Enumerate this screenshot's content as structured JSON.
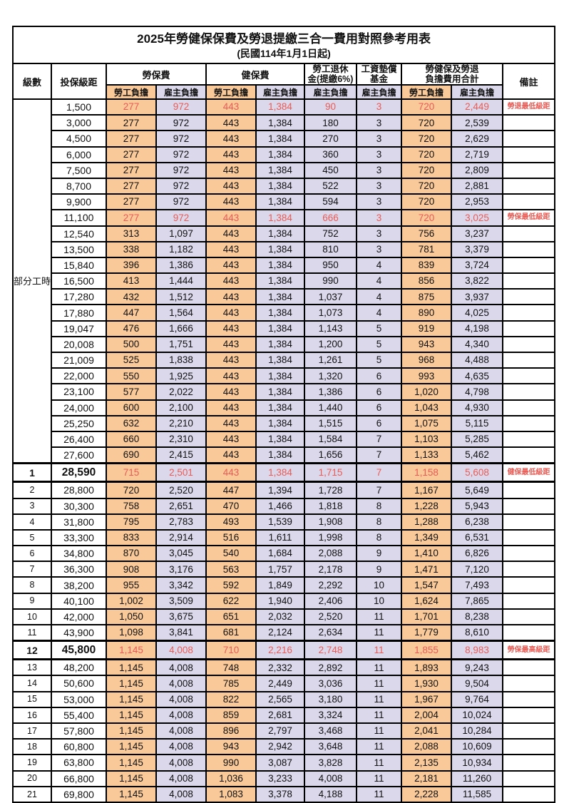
{
  "title": "2025年勞健保保費及勞退提繳三合一費用對照參考用表",
  "subtitle": "(民國114年1月1日起)",
  "colors": {
    "employee_bg": "#f9c999",
    "employer_bg": "#dbd8ec",
    "red": "#e85c55",
    "border": "#000000"
  },
  "header": {
    "level": "級數",
    "bracket": "投保級距",
    "labor_fee": "勞保費",
    "health_fee": "健保費",
    "pension_line1": "勞工退休",
    "pension_line2": "金(提繳6%)",
    "wage_fund_line1": "工資墊償",
    "wage_fund_line2": "基金",
    "total_line1": "勞健保及勞退",
    "total_line2": "負擔費用合計",
    "note": "備註",
    "employee_share": "勞工負擔",
    "employer_share": "雇主負擔"
  },
  "part_time_label": "部分工時",
  "rows": [
    {
      "level": "",
      "bracket": "1,500",
      "cells": [
        "277",
        "972",
        "443",
        "1,384",
        "90",
        "3",
        "720",
        "2,449"
      ],
      "note": "勞退最低級距",
      "red": true,
      "big": false
    },
    {
      "level": "",
      "bracket": "3,000",
      "cells": [
        "277",
        "972",
        "443",
        "1,384",
        "180",
        "3",
        "720",
        "2,539"
      ],
      "note": "",
      "red": false,
      "big": false
    },
    {
      "level": "",
      "bracket": "4,500",
      "cells": [
        "277",
        "972",
        "443",
        "1,384",
        "270",
        "3",
        "720",
        "2,629"
      ],
      "note": "",
      "red": false,
      "big": false
    },
    {
      "level": "",
      "bracket": "6,000",
      "cells": [
        "277",
        "972",
        "443",
        "1,384",
        "360",
        "3",
        "720",
        "2,719"
      ],
      "note": "",
      "red": false,
      "big": false
    },
    {
      "level": "",
      "bracket": "7,500",
      "cells": [
        "277",
        "972",
        "443",
        "1,384",
        "450",
        "3",
        "720",
        "2,809"
      ],
      "note": "",
      "red": false,
      "big": false
    },
    {
      "level": "",
      "bracket": "8,700",
      "cells": [
        "277",
        "972",
        "443",
        "1,384",
        "522",
        "3",
        "720",
        "2,881"
      ],
      "note": "",
      "red": false,
      "big": false
    },
    {
      "level": "",
      "bracket": "9,900",
      "cells": [
        "277",
        "972",
        "443",
        "1,384",
        "594",
        "3",
        "720",
        "2,953"
      ],
      "note": "",
      "red": false,
      "big": false
    },
    {
      "level": "",
      "bracket": "11,100",
      "cells": [
        "277",
        "972",
        "443",
        "1,384",
        "666",
        "3",
        "720",
        "3,025"
      ],
      "note": "勞保最低級距",
      "red": true,
      "big": false
    },
    {
      "level": "",
      "bracket": "12,540",
      "cells": [
        "313",
        "1,097",
        "443",
        "1,384",
        "752",
        "3",
        "756",
        "3,237"
      ],
      "note": "",
      "red": false,
      "big": false
    },
    {
      "level": "",
      "bracket": "13,500",
      "cells": [
        "338",
        "1,182",
        "443",
        "1,384",
        "810",
        "3",
        "781",
        "3,379"
      ],
      "note": "",
      "red": false,
      "big": false
    },
    {
      "level": "",
      "bracket": "15,840",
      "cells": [
        "396",
        "1,386",
        "443",
        "1,384",
        "950",
        "4",
        "839",
        "3,724"
      ],
      "note": "",
      "red": false,
      "big": false
    },
    {
      "level": "",
      "bracket": "16,500",
      "cells": [
        "413",
        "1,444",
        "443",
        "1,384",
        "990",
        "4",
        "856",
        "3,822"
      ],
      "note": "",
      "red": false,
      "big": false
    },
    {
      "level": "",
      "bracket": "17,280",
      "cells": [
        "432",
        "1,512",
        "443",
        "1,384",
        "1,037",
        "4",
        "875",
        "3,937"
      ],
      "note": "",
      "red": false,
      "big": false
    },
    {
      "level": "",
      "bracket": "17,880",
      "cells": [
        "447",
        "1,564",
        "443",
        "1,384",
        "1,073",
        "4",
        "890",
        "4,025"
      ],
      "note": "",
      "red": false,
      "big": false
    },
    {
      "level": "",
      "bracket": "19,047",
      "cells": [
        "476",
        "1,666",
        "443",
        "1,384",
        "1,143",
        "5",
        "919",
        "4,198"
      ],
      "note": "",
      "red": false,
      "big": false
    },
    {
      "level": "",
      "bracket": "20,008",
      "cells": [
        "500",
        "1,751",
        "443",
        "1,384",
        "1,200",
        "5",
        "943",
        "4,340"
      ],
      "note": "",
      "red": false,
      "big": false
    },
    {
      "level": "",
      "bracket": "21,009",
      "cells": [
        "525",
        "1,838",
        "443",
        "1,384",
        "1,261",
        "5",
        "968",
        "4,488"
      ],
      "note": "",
      "red": false,
      "big": false
    },
    {
      "level": "",
      "bracket": "22,000",
      "cells": [
        "550",
        "1,925",
        "443",
        "1,384",
        "1,320",
        "6",
        "993",
        "4,635"
      ],
      "note": "",
      "red": false,
      "big": false
    },
    {
      "level": "",
      "bracket": "23,100",
      "cells": [
        "577",
        "2,022",
        "443",
        "1,384",
        "1,386",
        "6",
        "1,020",
        "4,798"
      ],
      "note": "",
      "red": false,
      "big": false
    },
    {
      "level": "",
      "bracket": "24,000",
      "cells": [
        "600",
        "2,100",
        "443",
        "1,384",
        "1,440",
        "6",
        "1,043",
        "4,930"
      ],
      "note": "",
      "red": false,
      "big": false
    },
    {
      "level": "",
      "bracket": "25,250",
      "cells": [
        "632",
        "2,210",
        "443",
        "1,384",
        "1,515",
        "6",
        "1,075",
        "5,115"
      ],
      "note": "",
      "red": false,
      "big": false
    },
    {
      "level": "",
      "bracket": "26,400",
      "cells": [
        "660",
        "2,310",
        "443",
        "1,384",
        "1,584",
        "7",
        "1,103",
        "5,285"
      ],
      "note": "",
      "red": false,
      "big": false
    },
    {
      "level": "",
      "bracket": "27,600",
      "cells": [
        "690",
        "2,415",
        "443",
        "1,384",
        "1,656",
        "7",
        "1,133",
        "5,462"
      ],
      "note": "",
      "red": false,
      "big": false
    },
    {
      "level": "1",
      "bracket": "28,590",
      "cells": [
        "715",
        "2,501",
        "443",
        "1,384",
        "1,715",
        "7",
        "1,158",
        "5,608"
      ],
      "note": "健保最低級距",
      "red": true,
      "big": true
    },
    {
      "level": "2",
      "bracket": "28,800",
      "cells": [
        "720",
        "2,520",
        "447",
        "1,394",
        "1,728",
        "7",
        "1,167",
        "5,649"
      ],
      "note": "",
      "red": false,
      "big": false
    },
    {
      "level": "3",
      "bracket": "30,300",
      "cells": [
        "758",
        "2,651",
        "470",
        "1,466",
        "1,818",
        "8",
        "1,228",
        "5,943"
      ],
      "note": "",
      "red": false,
      "big": false
    },
    {
      "level": "4",
      "bracket": "31,800",
      "cells": [
        "795",
        "2,783",
        "493",
        "1,539",
        "1,908",
        "8",
        "1,288",
        "6,238"
      ],
      "note": "",
      "red": false,
      "big": false
    },
    {
      "level": "5",
      "bracket": "33,300",
      "cells": [
        "833",
        "2,914",
        "516",
        "1,611",
        "1,998",
        "8",
        "1,349",
        "6,531"
      ],
      "note": "",
      "red": false,
      "big": false
    },
    {
      "level": "6",
      "bracket": "34,800",
      "cells": [
        "870",
        "3,045",
        "540",
        "1,684",
        "2,088",
        "9",
        "1,410",
        "6,826"
      ],
      "note": "",
      "red": false,
      "big": false
    },
    {
      "level": "7",
      "bracket": "36,300",
      "cells": [
        "908",
        "3,176",
        "563",
        "1,757",
        "2,178",
        "9",
        "1,471",
        "7,120"
      ],
      "note": "",
      "red": false,
      "big": false
    },
    {
      "level": "8",
      "bracket": "38,200",
      "cells": [
        "955",
        "3,342",
        "592",
        "1,849",
        "2,292",
        "10",
        "1,547",
        "7,493"
      ],
      "note": "",
      "red": false,
      "big": false
    },
    {
      "level": "9",
      "bracket": "40,100",
      "cells": [
        "1,002",
        "3,509",
        "622",
        "1,940",
        "2,406",
        "10",
        "1,624",
        "7,865"
      ],
      "note": "",
      "red": false,
      "big": false
    },
    {
      "level": "10",
      "bracket": "42,000",
      "cells": [
        "1,050",
        "3,675",
        "651",
        "2,032",
        "2,520",
        "11",
        "1,701",
        "8,238"
      ],
      "note": "",
      "red": false,
      "big": false
    },
    {
      "level": "11",
      "bracket": "43,900",
      "cells": [
        "1,098",
        "3,841",
        "681",
        "2,124",
        "2,634",
        "11",
        "1,779",
        "8,610"
      ],
      "note": "",
      "red": false,
      "big": false
    },
    {
      "level": "12",
      "bracket": "45,800",
      "cells": [
        "1,145",
        "4,008",
        "710",
        "2,216",
        "2,748",
        "11",
        "1,855",
        "8,983"
      ],
      "note": "勞保最高級距",
      "red": true,
      "big": true
    },
    {
      "level": "13",
      "bracket": "48,200",
      "cells": [
        "1,145",
        "4,008",
        "748",
        "2,332",
        "2,892",
        "11",
        "1,893",
        "9,243"
      ],
      "note": "",
      "red": false,
      "big": false
    },
    {
      "level": "14",
      "bracket": "50,600",
      "cells": [
        "1,145",
        "4,008",
        "785",
        "2,449",
        "3,036",
        "11",
        "1,930",
        "9,504"
      ],
      "note": "",
      "red": false,
      "big": false
    },
    {
      "level": "15",
      "bracket": "53,000",
      "cells": [
        "1,145",
        "4,008",
        "822",
        "2,565",
        "3,180",
        "11",
        "1,967",
        "9,764"
      ],
      "note": "",
      "red": false,
      "big": false
    },
    {
      "level": "16",
      "bracket": "55,400",
      "cells": [
        "1,145",
        "4,008",
        "859",
        "2,681",
        "3,324",
        "11",
        "2,004",
        "10,024"
      ],
      "note": "",
      "red": false,
      "big": false
    },
    {
      "level": "17",
      "bracket": "57,800",
      "cells": [
        "1,145",
        "4,008",
        "896",
        "2,797",
        "3,468",
        "11",
        "2,041",
        "10,284"
      ],
      "note": "",
      "red": false,
      "big": false
    },
    {
      "level": "18",
      "bracket": "60,800",
      "cells": [
        "1,145",
        "4,008",
        "943",
        "2,942",
        "3,648",
        "11",
        "2,088",
        "10,609"
      ],
      "note": "",
      "red": false,
      "big": false
    },
    {
      "level": "19",
      "bracket": "63,800",
      "cells": [
        "1,145",
        "4,008",
        "990",
        "3,087",
        "3,828",
        "11",
        "2,135",
        "10,934"
      ],
      "note": "",
      "red": false,
      "big": false
    },
    {
      "level": "20",
      "bracket": "66,800",
      "cells": [
        "1,145",
        "4,008",
        "1,036",
        "3,233",
        "4,008",
        "11",
        "2,181",
        "11,260"
      ],
      "note": "",
      "red": false,
      "big": false
    },
    {
      "level": "21",
      "bracket": "69,800",
      "cells": [
        "1,145",
        "4,008",
        "1,083",
        "3,378",
        "4,188",
        "11",
        "2,228",
        "11,585"
      ],
      "note": "",
      "red": false,
      "big": false
    }
  ]
}
